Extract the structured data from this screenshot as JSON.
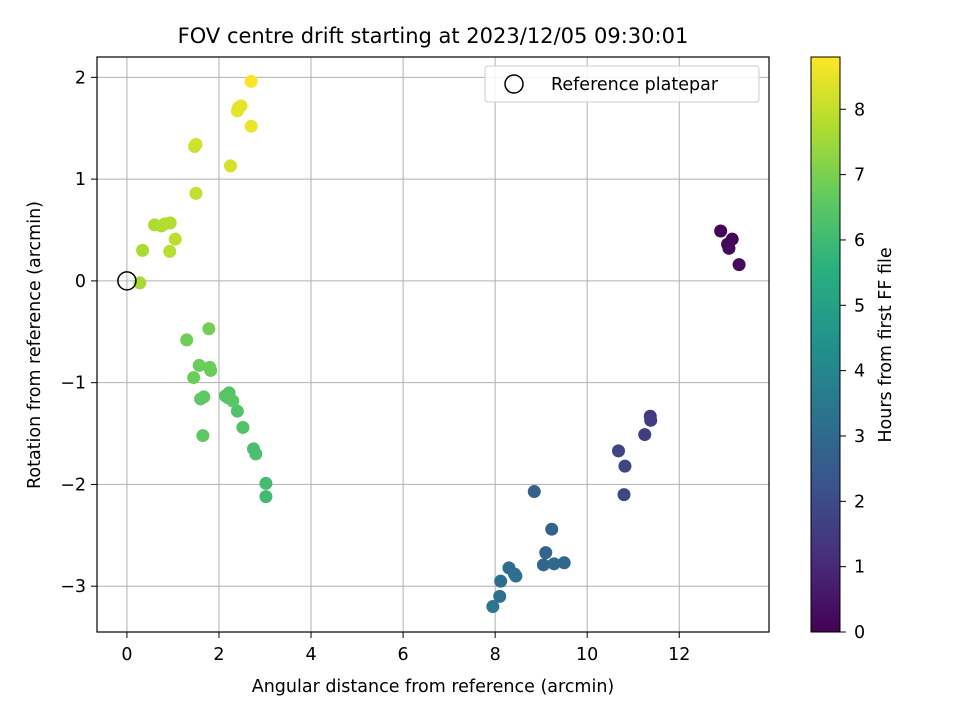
{
  "chart_data": {
    "type": "scatter",
    "title": "FOV centre drift starting at 2023/12/05 09:30:01",
    "xlabel": "Angular distance from reference (arcmin)",
    "ylabel": "Rotation from reference (arcmin)",
    "xlim": [
      -0.65,
      13.95
    ],
    "ylim": [
      -3.45,
      2.2
    ],
    "xticks": [
      0,
      2,
      4,
      6,
      8,
      10,
      12
    ],
    "yticks": [
      -3,
      -2,
      -1,
      0,
      1,
      2
    ],
    "xtick_labels": [
      "0",
      "2",
      "4",
      "6",
      "8",
      "10",
      "12"
    ],
    "ytick_labels": [
      "−3",
      "−2",
      "−1",
      "0",
      "1",
      "2"
    ],
    "grid": true,
    "legend": {
      "placement": "top-right",
      "entries": [
        "Reference platepar"
      ]
    },
    "reference_point": {
      "x": 0,
      "y": 0,
      "label": "Reference platepar"
    },
    "colorbar": {
      "label": "Hours from first FF file",
      "range": [
        0,
        8.8
      ],
      "ticks": [
        0,
        1,
        2,
        3,
        4,
        5,
        6,
        7,
        8
      ],
      "tick_labels": [
        "0",
        "1",
        "2",
        "3",
        "4",
        "5",
        "6",
        "7",
        "8"
      ],
      "colormap": "viridis"
    },
    "points": [
      {
        "x": 12.9,
        "y": 0.49,
        "c": 0.05
      },
      {
        "x": 13.15,
        "y": 0.41,
        "c": 0.1
      },
      {
        "x": 13.05,
        "y": 0.36,
        "c": 0.15
      },
      {
        "x": 13.08,
        "y": 0.32,
        "c": 0.2
      },
      {
        "x": 13.3,
        "y": 0.16,
        "c": 0.25
      },
      {
        "x": 11.37,
        "y": -1.33,
        "c": 1.45
      },
      {
        "x": 11.38,
        "y": -1.37,
        "c": 1.5
      },
      {
        "x": 11.25,
        "y": -1.51,
        "c": 1.55
      },
      {
        "x": 10.68,
        "y": -1.67,
        "c": 1.75
      },
      {
        "x": 10.82,
        "y": -1.82,
        "c": 1.8
      },
      {
        "x": 10.8,
        "y": -2.1,
        "c": 1.85
      },
      {
        "x": 8.85,
        "y": -2.07,
        "c": 2.75
      },
      {
        "x": 9.23,
        "y": -2.44,
        "c": 2.8
      },
      {
        "x": 9.1,
        "y": -2.67,
        "c": 2.85
      },
      {
        "x": 9.05,
        "y": -2.79,
        "c": 2.9
      },
      {
        "x": 9.28,
        "y": -2.78,
        "c": 2.95
      },
      {
        "x": 9.5,
        "y": -2.77,
        "c": 2.9
      },
      {
        "x": 8.3,
        "y": -2.82,
        "c": 3.05
      },
      {
        "x": 8.42,
        "y": -2.88,
        "c": 3.1
      },
      {
        "x": 8.45,
        "y": -2.9,
        "c": 3.15
      },
      {
        "x": 8.12,
        "y": -2.95,
        "c": 3.2
      },
      {
        "x": 8.1,
        "y": -3.1,
        "c": 3.3
      },
      {
        "x": 7.95,
        "y": -3.2,
        "c": 3.4
      },
      {
        "x": 3.02,
        "y": -1.99,
        "c": 6.05
      },
      {
        "x": 3.02,
        "y": -2.12,
        "c": 6.0
      },
      {
        "x": 2.75,
        "y": -1.65,
        "c": 6.15
      },
      {
        "x": 2.8,
        "y": -1.7,
        "c": 6.2
      },
      {
        "x": 2.52,
        "y": -1.44,
        "c": 6.3
      },
      {
        "x": 2.4,
        "y": -1.28,
        "c": 6.35
      },
      {
        "x": 2.22,
        "y": -1.1,
        "c": 6.4
      },
      {
        "x": 2.2,
        "y": -1.15,
        "c": 6.45
      },
      {
        "x": 2.3,
        "y": -1.18,
        "c": 6.5
      },
      {
        "x": 2.14,
        "y": -1.13,
        "c": 6.45
      },
      {
        "x": 1.65,
        "y": -1.52,
        "c": 6.55
      },
      {
        "x": 1.6,
        "y": -1.16,
        "c": 6.6
      },
      {
        "x": 1.67,
        "y": -1.14,
        "c": 6.6
      },
      {
        "x": 1.57,
        "y": -0.83,
        "c": 6.75
      },
      {
        "x": 1.8,
        "y": -0.85,
        "c": 6.75
      },
      {
        "x": 1.82,
        "y": -0.88,
        "c": 6.8
      },
      {
        "x": 1.45,
        "y": -0.95,
        "c": 6.8
      },
      {
        "x": 1.3,
        "y": -0.58,
        "c": 6.85
      },
      {
        "x": 1.78,
        "y": -0.47,
        "c": 6.9
      },
      {
        "x": 0.28,
        "y": -0.02,
        "c": 7.6
      },
      {
        "x": 0.34,
        "y": 0.3,
        "c": 7.65
      },
      {
        "x": 0.6,
        "y": 0.55,
        "c": 7.7
      },
      {
        "x": 0.75,
        "y": 0.54,
        "c": 7.75
      },
      {
        "x": 0.82,
        "y": 0.56,
        "c": 7.8
      },
      {
        "x": 0.94,
        "y": 0.57,
        "c": 7.8
      },
      {
        "x": 0.93,
        "y": 0.29,
        "c": 7.85
      },
      {
        "x": 1.05,
        "y": 0.41,
        "c": 7.9
      },
      {
        "x": 1.5,
        "y": 0.86,
        "c": 8.0
      },
      {
        "x": 1.47,
        "y": 1.32,
        "c": 8.1
      },
      {
        "x": 1.5,
        "y": 1.34,
        "c": 8.15
      },
      {
        "x": 2.25,
        "y": 1.13,
        "c": 8.25
      },
      {
        "x": 2.42,
        "y": 1.7,
        "c": 8.4
      },
      {
        "x": 2.48,
        "y": 1.72,
        "c": 8.45
      },
      {
        "x": 2.4,
        "y": 1.67,
        "c": 8.45
      },
      {
        "x": 2.7,
        "y": 1.52,
        "c": 8.55
      },
      {
        "x": 2.7,
        "y": 1.96,
        "c": 8.75
      }
    ]
  }
}
